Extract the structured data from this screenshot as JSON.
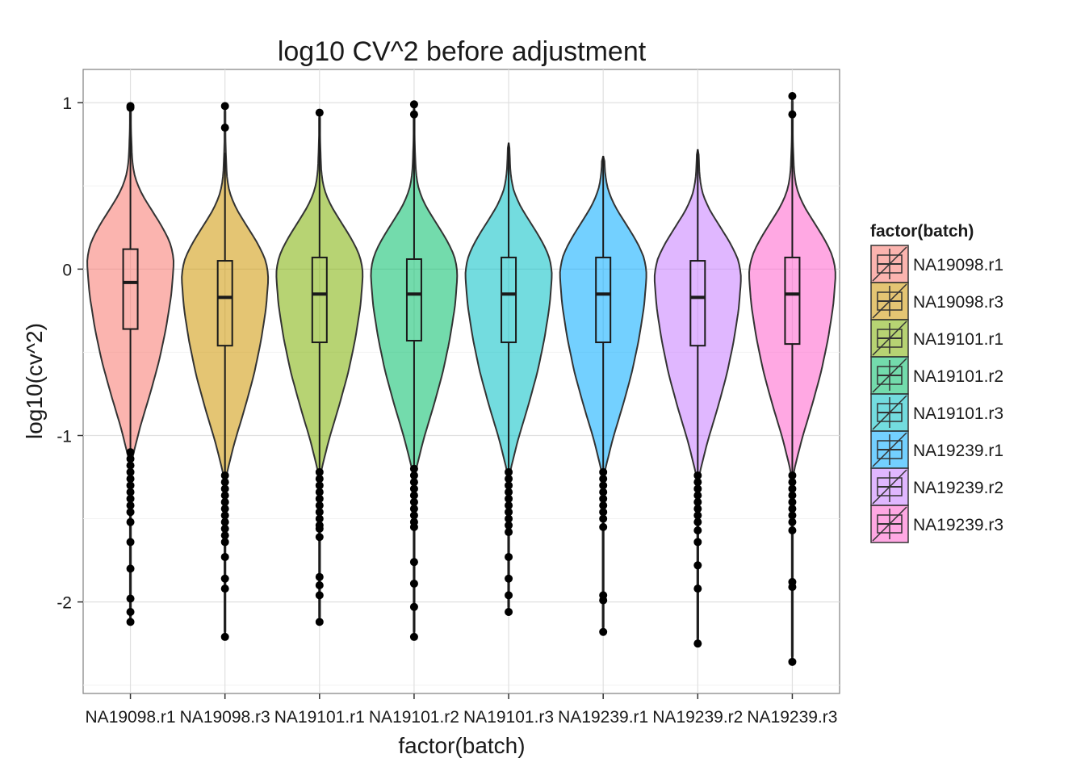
{
  "chart_data": {
    "type": "violin",
    "title": "log10 CV^2 before adjustment",
    "xlabel": "factor(batch)",
    "ylabel": "log10(cv^2)",
    "ylim": [
      -2.55,
      1.2
    ],
    "yticks": [
      1,
      0,
      -1,
      -2
    ],
    "ytick_labels": [
      "1",
      "0",
      "-1",
      "-2"
    ],
    "grid": true,
    "categories": [
      "NA19098.r1",
      "NA19098.r3",
      "NA19101.r1",
      "NA19101.r2",
      "NA19101.r3",
      "NA19239.r1",
      "NA19239.r2",
      "NA19239.r3"
    ],
    "legend": {
      "title": "factor(batch)",
      "position": "right",
      "entries": [
        "NA19098.r1",
        "NA19098.r3",
        "NA19101.r1",
        "NA19101.r2",
        "NA19101.r3",
        "NA19239.r1",
        "NA19239.r2",
        "NA19239.r3"
      ]
    },
    "series": [
      {
        "name": "NA19098.r1",
        "color": "#F8766D",
        "violin_min": -2.12,
        "violin_max": 0.98,
        "box": {
          "q1": -0.36,
          "median": -0.08,
          "q3": 0.12,
          "whisker_low": -1.1,
          "whisker_high": 0.97
        },
        "outliers": [
          0.97,
          0.98,
          -1.1,
          -1.14,
          -1.18,
          -1.22,
          -1.26,
          -1.3,
          -1.34,
          -1.38,
          -1.42,
          -1.46,
          -1.52,
          -1.64,
          -1.8,
          -1.98,
          -2.06,
          -2.12
        ]
      },
      {
        "name": "NA19098.r3",
        "color": "#CD9600",
        "violin_min": -2.21,
        "violin_max": 0.98,
        "box": {
          "q1": -0.46,
          "median": -0.17,
          "q3": 0.05,
          "whisker_low": -1.24,
          "whisker_high": 0.7
        },
        "outliers": [
          0.85,
          0.98,
          -1.24,
          -1.28,
          -1.32,
          -1.36,
          -1.4,
          -1.44,
          -1.48,
          -1.52,
          -1.56,
          -1.6,
          -1.64,
          -1.73,
          -1.86,
          -1.92,
          -2.21
        ]
      },
      {
        "name": "NA19101.r1",
        "color": "#7CAE00",
        "violin_min": -2.12,
        "violin_max": 0.94,
        "box": {
          "q1": -0.44,
          "median": -0.15,
          "q3": 0.07,
          "whisker_low": -1.22,
          "whisker_high": 0.94
        },
        "outliers": [
          0.94,
          -1.22,
          -1.26,
          -1.3,
          -1.34,
          -1.38,
          -1.42,
          -1.46,
          -1.5,
          -1.54,
          -1.56,
          -1.61,
          -1.85,
          -1.9,
          -1.96,
          -2.12
        ]
      },
      {
        "name": "NA19101.r2",
        "color": "#00BE67",
        "violin_min": -2.21,
        "violin_max": 0.99,
        "box": {
          "q1": -0.43,
          "median": -0.15,
          "q3": 0.06,
          "whisker_low": -1.2,
          "whisker_high": 0.99
        },
        "outliers": [
          0.93,
          0.99,
          -1.2,
          -1.24,
          -1.28,
          -1.32,
          -1.36,
          -1.4,
          -1.44,
          -1.48,
          -1.52,
          -1.55,
          -1.76,
          -1.89,
          -2.03,
          -2.21
        ]
      },
      {
        "name": "NA19101.r3",
        "color": "#00BFC4",
        "violin_min": -2.06,
        "violin_max": 0.76,
        "box": {
          "q1": -0.44,
          "median": -0.15,
          "q3": 0.07,
          "whisker_low": -1.22,
          "whisker_high": 0.76
        },
        "outliers": [
          -1.22,
          -1.26,
          -1.3,
          -1.34,
          -1.38,
          -1.42,
          -1.46,
          -1.5,
          -1.54,
          -1.58,
          -1.73,
          -1.86,
          -1.96,
          -2.06
        ]
      },
      {
        "name": "NA19239.r1",
        "color": "#00A9FF",
        "violin_min": -2.18,
        "violin_max": 0.68,
        "box": {
          "q1": -0.44,
          "median": -0.15,
          "q3": 0.07,
          "whisker_low": -1.22,
          "whisker_high": 0.68
        },
        "outliers": [
          -1.22,
          -1.26,
          -1.3,
          -1.34,
          -1.38,
          -1.42,
          -1.46,
          -1.5,
          -1.55,
          -1.96,
          -1.99,
          -2.18
        ]
      },
      {
        "name": "NA19239.r2",
        "color": "#C77CFF",
        "violin_min": -2.25,
        "violin_max": 0.72,
        "box": {
          "q1": -0.46,
          "median": -0.17,
          "q3": 0.05,
          "whisker_low": -1.24,
          "whisker_high": 0.72
        },
        "outliers": [
          -1.24,
          -1.28,
          -1.32,
          -1.36,
          -1.4,
          -1.44,
          -1.48,
          -1.52,
          -1.57,
          -1.64,
          -1.78,
          -1.92,
          -2.25
        ]
      },
      {
        "name": "NA19239.r3",
        "color": "#FF61CC",
        "violin_min": -2.36,
        "violin_max": 1.04,
        "box": {
          "q1": -0.45,
          "median": -0.15,
          "q3": 0.07,
          "whisker_low": -1.24,
          "whisker_high": 0.9
        },
        "outliers": [
          0.93,
          1.04,
          -1.24,
          -1.28,
          -1.32,
          -1.36,
          -1.4,
          -1.44,
          -1.48,
          -1.52,
          -1.57,
          -1.88,
          -1.91,
          -2.36
        ]
      }
    ]
  }
}
